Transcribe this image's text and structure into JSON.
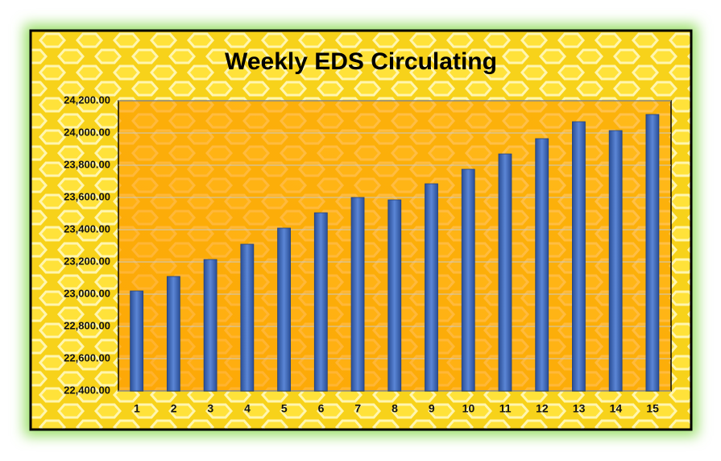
{
  "chart_data": {
    "type": "bar",
    "title": "Weekly EDS Circulating",
    "categories": [
      "1",
      "2",
      "3",
      "4",
      "5",
      "6",
      "7",
      "8",
      "9",
      "10",
      "11",
      "12",
      "13",
      "14",
      "15"
    ],
    "values": [
      23020,
      23110,
      23215,
      23310,
      23410,
      23505,
      23600,
      23585,
      23685,
      23775,
      23870,
      23965,
      24070,
      24015,
      24115
    ],
    "color": "#3a64b0",
    "ylim": [
      22400,
      24200
    ],
    "yticks": [
      {
        "value": 22400,
        "label": "22,400.00"
      },
      {
        "value": 22600,
        "label": "22,600.00"
      },
      {
        "value": 22800,
        "label": "22,800.00"
      },
      {
        "value": 23000,
        "label": "23,000.00"
      },
      {
        "value": 23200,
        "label": "23,200.00"
      },
      {
        "value": 23400,
        "label": "23,400.00"
      },
      {
        "value": 23600,
        "label": "23,600.00"
      },
      {
        "value": 23800,
        "label": "23,800.00"
      },
      {
        "value": 24000,
        "label": "24,000.00"
      },
      {
        "value": 24200,
        "label": "24,200.00"
      }
    ],
    "grid": true
  }
}
